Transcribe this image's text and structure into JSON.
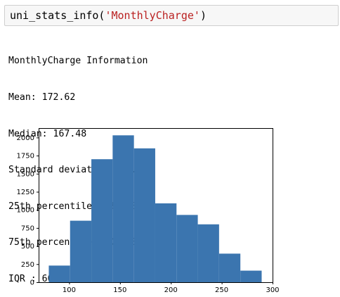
{
  "cell": {
    "code_prefix": "uni_stats_info(",
    "code_arg": "'MonthlyCharge'",
    "code_suffix": ")"
  },
  "output": {
    "lines": [
      "MonthlyCharge Information",
      "Mean: 172.62",
      "Median: 167.48",
      "Standard deviation: 42.94",
      "25th percentile: 139.98",
      "75th percentile: 200.73",
      "IQR : 60.76"
    ]
  },
  "chart_data": {
    "type": "bar",
    "title": "",
    "xlabel": "",
    "ylabel": "",
    "bar_color": "#3b75af",
    "bins": [
      {
        "left": 79.98,
        "right": 100.91,
        "count": 230
      },
      {
        "left": 100.91,
        "right": 121.84,
        "count": 850
      },
      {
        "left": 121.84,
        "right": 142.77,
        "count": 1700
      },
      {
        "left": 142.77,
        "right": 163.7,
        "count": 2030
      },
      {
        "left": 163.7,
        "right": 184.63,
        "count": 1850
      },
      {
        "left": 184.63,
        "right": 205.56,
        "count": 1090
      },
      {
        "left": 205.56,
        "right": 226.49,
        "count": 930
      },
      {
        "left": 226.49,
        "right": 247.42,
        "count": 800
      },
      {
        "left": 247.42,
        "right": 268.35,
        "count": 395
      },
      {
        "left": 268.35,
        "right": 289.28,
        "count": 160
      }
    ],
    "xlim": [
      70,
      300
    ],
    "ylim": [
      0,
      2130
    ],
    "xticks": [
      100,
      150,
      200,
      250,
      300
    ],
    "yticks": [
      0,
      250,
      500,
      750,
      1000,
      1250,
      1500,
      1750,
      2000
    ]
  }
}
